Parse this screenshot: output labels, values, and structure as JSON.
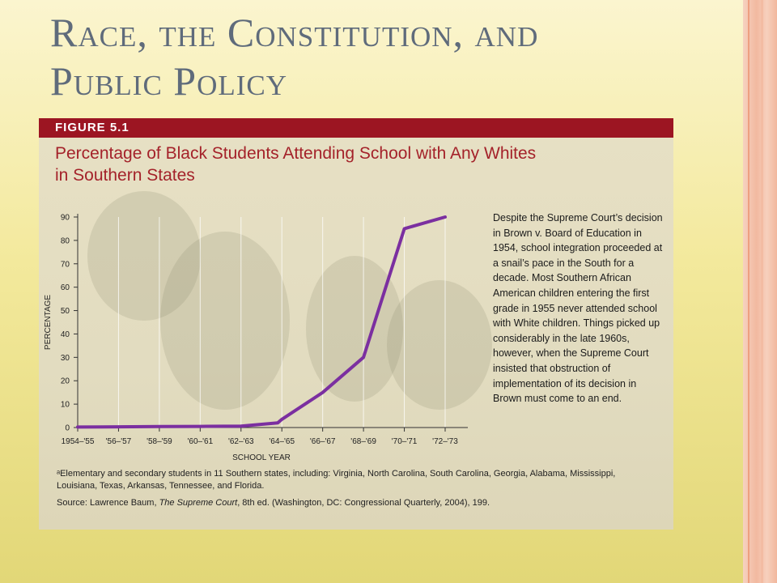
{
  "slide": {
    "title_line1": "Race, the Constitution, and",
    "title_line2": "Public Policy"
  },
  "figure": {
    "label": "FIGURE 5.1",
    "title_line1": "Percentage of Black Students Attending School with Any Whites",
    "title_line2": "in Southern States",
    "note": "Despite the Supreme Court’s decision in Brown v. Board of Education in 1954, school integration proceeded at a snail’s pace in the South for a decade. Most Southern African American children entering the first grade in 1955 never attended school with White children. Things picked up considerably in the late 1960s, however, when the Supreme Court insisted that obstruction of implementation of its decision in Brown must come to an end.",
    "footnote": "ᵃElementary and secondary students in 11 Southern states, including: Virginia, North Carolina, South Carolina, Georgia, Alabama, Mississippi, Louisiana, Texas, Arkansas, Tennessee, and Florida.",
    "source_prefix": "Source: Lawrence Baum, ",
    "source_title": "The Supreme Court",
    "source_suffix": ", 8th ed. (Washington, DC: Congressional Quarterly, 2004), 199."
  },
  "colors": {
    "header_bar": "#9c1522",
    "title_text": "#a4222a",
    "line": "#7b2fa0",
    "accent_dot": "#f4752f"
  },
  "chart_data": {
    "type": "line",
    "title": "Percentage of Black Students Attending School with Any Whites in Southern States",
    "xlabel": "SCHOOL YEAR",
    "ylabel": "PERCENTAGE",
    "ylim": [
      0,
      90
    ],
    "yticks": [
      0,
      10,
      20,
      30,
      40,
      50,
      60,
      70,
      80,
      90
    ],
    "categories": [
      "1954–'55",
      "'56–'57",
      "'58–'59",
      "'60–'61",
      "'62–'63",
      "'64–'65",
      "'66–'67",
      "'68–'69",
      "'70–'71",
      "'72–'73"
    ],
    "series": [
      {
        "x": [
          0,
          1,
          2,
          3,
          4,
          4.9,
          5,
          6,
          7,
          8,
          9
        ],
        "values": [
          0.2,
          0.3,
          0.4,
          0.5,
          0.6,
          2,
          3.5,
          15,
          30,
          85,
          90
        ]
      }
    ],
    "grid": true
  }
}
